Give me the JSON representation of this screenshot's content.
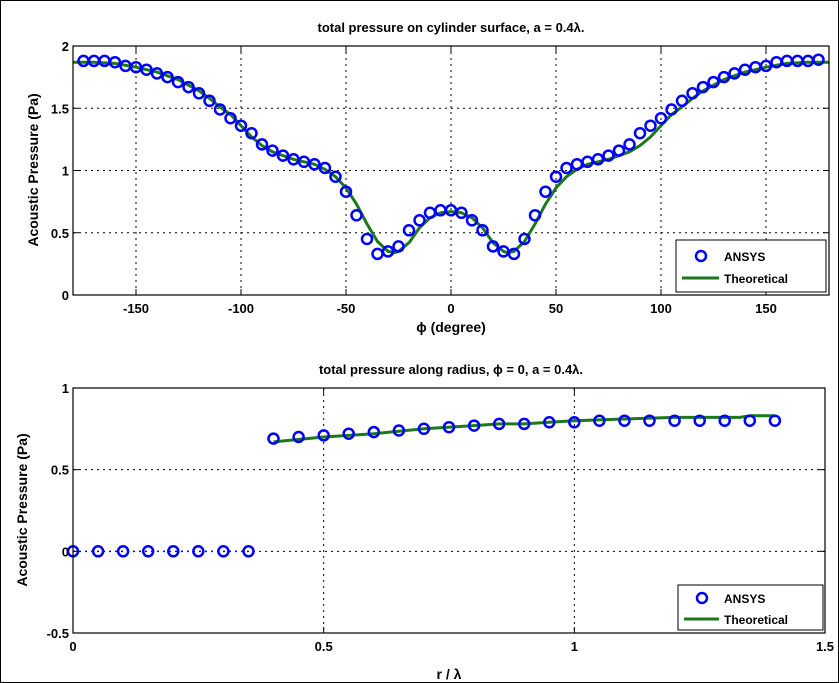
{
  "chart_data": [
    {
      "type": "scatter",
      "title": "total pressure on cylinder surface, a = 0.4λ.",
      "xlabel": "ϕ (degree)",
      "ylabel": "Acoustic Pressure (Pa)",
      "xlim": [
        -180,
        180
      ],
      "ylim": [
        0,
        2
      ],
      "xticks": [
        -150,
        -100,
        -50,
        0,
        50,
        100,
        150
      ],
      "xtick_labels": [
        "-150",
        "-100",
        "-50",
        "0",
        "50",
        "100",
        "150"
      ],
      "yticks": [
        0,
        0.5,
        1,
        1.5,
        2
      ],
      "ytick_labels": [
        "0",
        "0.5",
        "1",
        "1.5",
        "2"
      ],
      "grid": true,
      "legend_position": "bottom-right",
      "series": [
        {
          "name": "ANSYS",
          "style": "markers",
          "color": "#0000ff",
          "x": [
            -175,
            -170,
            -165,
            -160,
            -155,
            -150,
            -145,
            -140,
            -135,
            -130,
            -125,
            -120,
            -115,
            -110,
            -105,
            -100,
            -95,
            -90,
            -85,
            -80,
            -75,
            -70,
            -65,
            -60,
            -55,
            -50,
            -45,
            -40,
            -35,
            -30,
            -25,
            -20,
            -15,
            -10,
            -5,
            0,
            5,
            10,
            15,
            20,
            25,
            30,
            35,
            40,
            45,
            50,
            55,
            60,
            65,
            70,
            75,
            80,
            85,
            90,
            95,
            100,
            105,
            110,
            115,
            120,
            125,
            130,
            135,
            140,
            145,
            150,
            155,
            160,
            165,
            170,
            175
          ],
          "y": [
            1.88,
            1.88,
            1.88,
            1.87,
            1.84,
            1.83,
            1.81,
            1.78,
            1.75,
            1.71,
            1.67,
            1.62,
            1.56,
            1.49,
            1.42,
            1.36,
            1.3,
            1.21,
            1.16,
            1.12,
            1.09,
            1.07,
            1.05,
            1.02,
            0.95,
            0.83,
            0.64,
            0.45,
            0.33,
            0.35,
            0.39,
            0.52,
            0.6,
            0.66,
            0.68,
            0.68,
            0.66,
            0.6,
            0.52,
            0.39,
            0.35,
            0.33,
            0.45,
            0.64,
            0.83,
            0.95,
            1.02,
            1.05,
            1.07,
            1.09,
            1.12,
            1.16,
            1.21,
            1.3,
            1.36,
            1.42,
            1.49,
            1.56,
            1.62,
            1.67,
            1.71,
            1.75,
            1.78,
            1.81,
            1.83,
            1.84,
            1.87,
            1.88,
            1.88,
            1.88,
            1.89
          ]
        },
        {
          "name": "Theoretical",
          "style": "line",
          "color": "#1a7a1a",
          "x": [
            -180,
            -170,
            -160,
            -150,
            -140,
            -130,
            -120,
            -115,
            -110,
            -105,
            -100,
            -95,
            -90,
            -85,
            -80,
            -75,
            -70,
            -65,
            -60,
            -55,
            -50,
            -45,
            -40,
            -35,
            -30,
            -27,
            -25,
            -20,
            -15,
            -10,
            -5,
            0,
            5,
            10,
            15,
            20,
            25,
            27,
            30,
            35,
            40,
            45,
            50,
            55,
            60,
            65,
            70,
            75,
            80,
            85,
            90,
            95,
            100,
            105,
            110,
            115,
            120,
            130,
            140,
            150,
            160,
            170,
            180
          ],
          "y": [
            1.87,
            1.87,
            1.86,
            1.83,
            1.79,
            1.73,
            1.64,
            1.58,
            1.51,
            1.45,
            1.36,
            1.27,
            1.2,
            1.15,
            1.12,
            1.09,
            1.07,
            1.05,
            1.01,
            0.95,
            0.86,
            0.73,
            0.57,
            0.43,
            0.35,
            0.34,
            0.35,
            0.42,
            0.54,
            0.62,
            0.66,
            0.67,
            0.66,
            0.62,
            0.54,
            0.42,
            0.35,
            0.34,
            0.35,
            0.43,
            0.57,
            0.73,
            0.86,
            0.95,
            1.01,
            1.05,
            1.07,
            1.09,
            1.12,
            1.15,
            1.2,
            1.27,
            1.36,
            1.45,
            1.51,
            1.58,
            1.64,
            1.73,
            1.79,
            1.83,
            1.86,
            1.87,
            1.87
          ]
        }
      ]
    },
    {
      "type": "scatter",
      "title": "total pressure along radius, ϕ = 0, a = 0.4λ.",
      "xlabel": "r / λ",
      "ylabel": "Acoustic Pressure (Pa)",
      "xlim": [
        0,
        1.5
      ],
      "ylim": [
        -0.5,
        1
      ],
      "xticks": [
        0,
        0.5,
        1,
        1.5
      ],
      "xtick_labels": [
        "0",
        "0.5",
        "1",
        "1.5"
      ],
      "yticks": [
        -0.5,
        0,
        0.5,
        1
      ],
      "ytick_labels": [
        "-0.5",
        "0",
        "0.5",
        "1"
      ],
      "grid": true,
      "legend_position": "bottom-right",
      "series": [
        {
          "name": "ANSYS",
          "style": "markers",
          "color": "#0000ff",
          "x": [
            0,
            0.05,
            0.1,
            0.15,
            0.2,
            0.25,
            0.3,
            0.35,
            0.4,
            0.45,
            0.5,
            0.55,
            0.6,
            0.65,
            0.7,
            0.75,
            0.8,
            0.85,
            0.9,
            0.95,
            1.0,
            1.05,
            1.1,
            1.15,
            1.2,
            1.25,
            1.3,
            1.35,
            1.4
          ],
          "y": [
            0,
            0,
            0,
            0,
            0,
            0,
            0,
            0,
            0.69,
            0.7,
            0.71,
            0.72,
            0.73,
            0.74,
            0.75,
            0.76,
            0.77,
            0.78,
            0.78,
            0.79,
            0.79,
            0.8,
            0.8,
            0.8,
            0.8,
            0.8,
            0.8,
            0.8,
            0.8
          ]
        },
        {
          "name": "Theoretical",
          "style": "line",
          "color": "#1a7a1a",
          "x": [
            0.4,
            0.5,
            0.6,
            0.7,
            0.8,
            0.85,
            0.9,
            0.95,
            1.0,
            1.1,
            1.2,
            1.3,
            1.33,
            1.35,
            1.4
          ],
          "y": [
            0.67,
            0.7,
            0.72,
            0.75,
            0.77,
            0.78,
            0.78,
            0.79,
            0.8,
            0.81,
            0.82,
            0.82,
            0.82,
            0.83,
            0.83
          ]
        },
        {
          "name": "",
          "style": "dotted-connector",
          "color": "#0000ff",
          "x": [
            0,
            0.35
          ],
          "y": [
            0,
            0
          ]
        }
      ]
    }
  ]
}
